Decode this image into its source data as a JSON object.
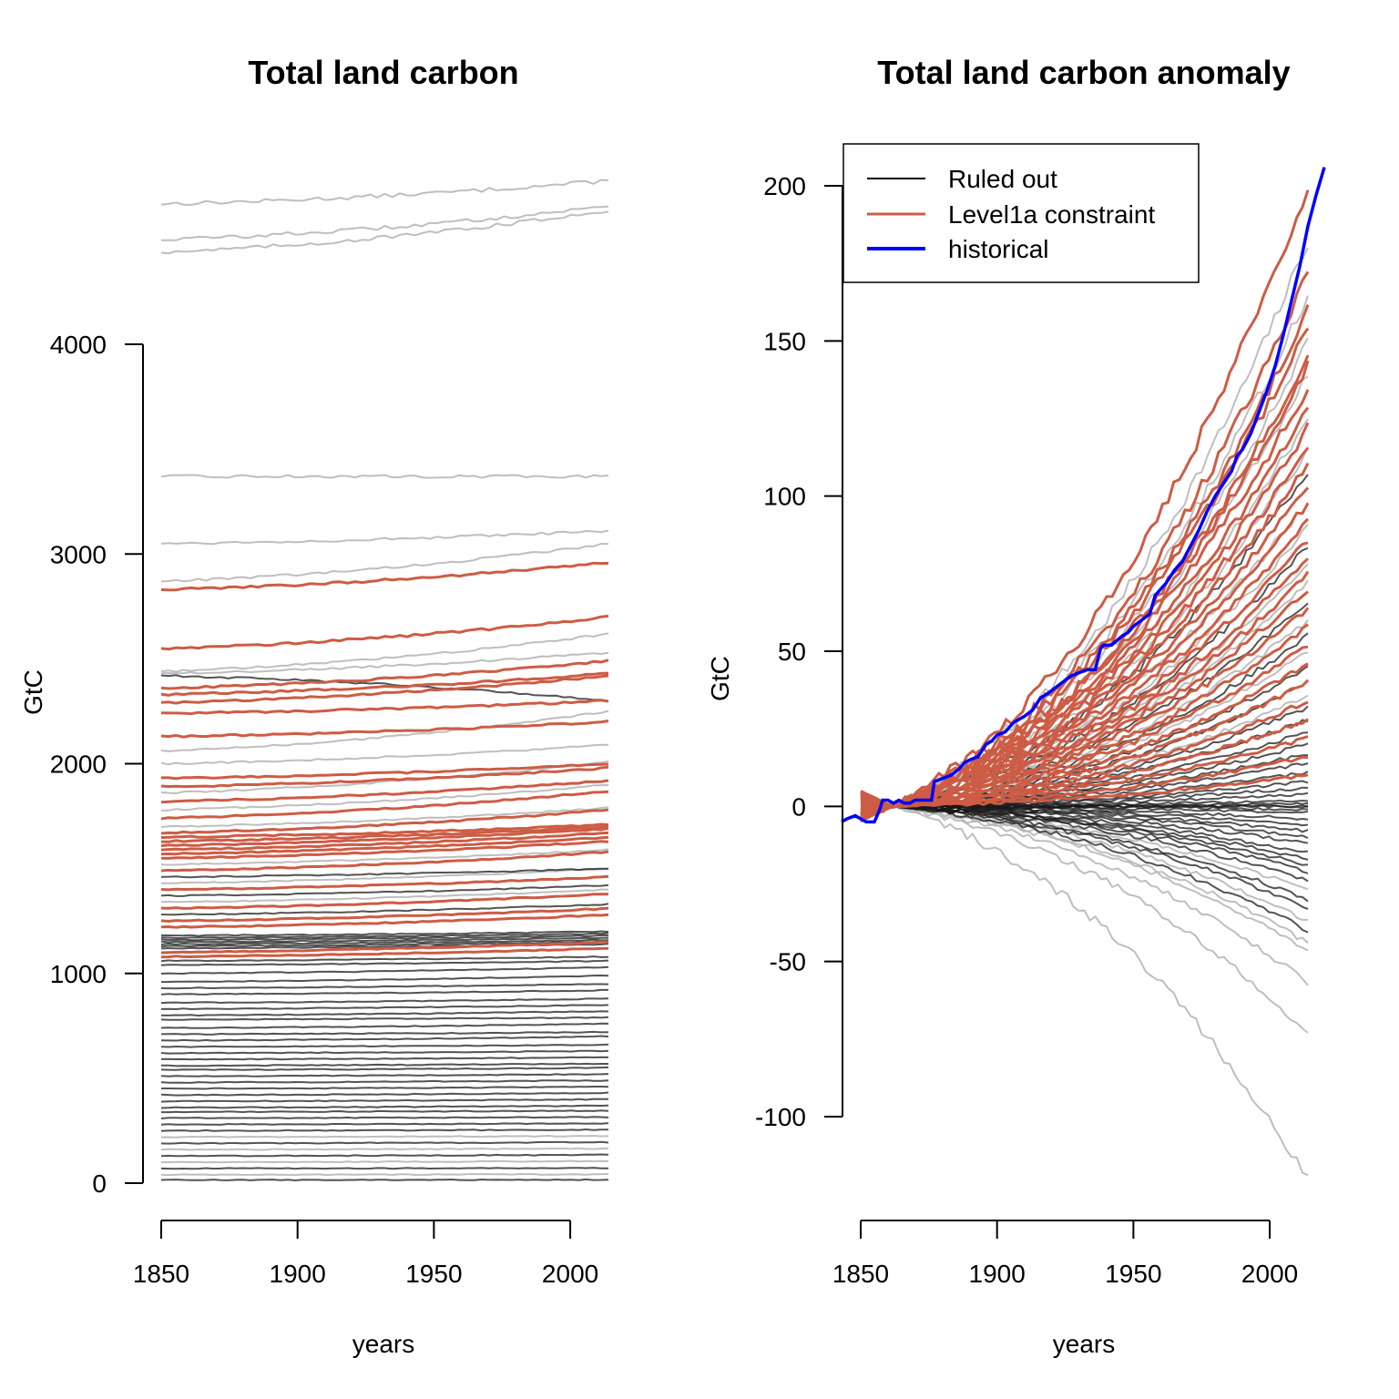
{
  "chart_data": [
    {
      "type": "line",
      "title": "Total land carbon",
      "xlabel": "years",
      "ylabel": "GtC",
      "xlim": [
        1850,
        2014
      ],
      "ylim": [
        0,
        4000
      ],
      "x_ticks": [
        1850,
        1900,
        1950,
        2000
      ],
      "y_ticks": [
        0,
        1000,
        2000,
        3000,
        4000
      ],
      "colors": {
        "ruled_out_light": "#b3b3b3",
        "ruled_out_dark": "#1a1a1a",
        "constraint": "#cd5c45"
      },
      "series": [
        {
          "group": "ruled_out_light",
          "start": 4670,
          "end": 4780
        },
        {
          "group": "ruled_out_light",
          "start": 4500,
          "end": 4660
        },
        {
          "group": "ruled_out_light",
          "start": 4440,
          "end": 4640
        },
        {
          "group": "ruled_out_light",
          "start": 3370,
          "end": 3370
        },
        {
          "group": "ruled_out_light",
          "start": 3050,
          "end": 3110
        },
        {
          "group": "ruled_out_light",
          "start": 2870,
          "end": 3050
        },
        {
          "group": "constraint",
          "start": 2830,
          "end": 2960
        },
        {
          "group": "constraint",
          "start": 2550,
          "end": 2700
        },
        {
          "group": "ruled_out_light",
          "start": 2440,
          "end": 2620
        },
        {
          "group": "ruled_out_light",
          "start": 2430,
          "end": 2530
        },
        {
          "group": "ruled_out_dark",
          "start": 2420,
          "end": 2300
        },
        {
          "group": "constraint",
          "start": 2360,
          "end": 2490
        },
        {
          "group": "constraint",
          "start": 2330,
          "end": 2430
        },
        {
          "group": "constraint",
          "start": 2290,
          "end": 2420
        },
        {
          "group": "constraint",
          "start": 2240,
          "end": 2300
        },
        {
          "group": "constraint",
          "start": 2130,
          "end": 2200
        },
        {
          "group": "ruled_out_light",
          "start": 2060,
          "end": 2250
        },
        {
          "group": "ruled_out_light",
          "start": 2000,
          "end": 2090
        },
        {
          "group": "constraint",
          "start": 1930,
          "end": 2000
        },
        {
          "group": "constraint",
          "start": 1890,
          "end": 1980
        },
        {
          "group": "ruled_out_light",
          "start": 1860,
          "end": 2010
        },
        {
          "group": "constraint",
          "start": 1820,
          "end": 1920
        },
        {
          "group": "ruled_out_light",
          "start": 1780,
          "end": 1900
        },
        {
          "group": "constraint",
          "start": 1740,
          "end": 1870
        },
        {
          "group": "ruled_out_light",
          "start": 1700,
          "end": 1790
        },
        {
          "group": "constraint",
          "start": 1670,
          "end": 1780
        },
        {
          "group": "constraint",
          "start": 1650,
          "end": 1710
        },
        {
          "group": "constraint",
          "start": 1630,
          "end": 1700
        },
        {
          "group": "constraint",
          "start": 1610,
          "end": 1690
        },
        {
          "group": "constraint",
          "start": 1590,
          "end": 1670
        },
        {
          "group": "constraint",
          "start": 1570,
          "end": 1650
        },
        {
          "group": "constraint",
          "start": 1550,
          "end": 1630
        },
        {
          "group": "ruled_out_light",
          "start": 1520,
          "end": 1590
        },
        {
          "group": "constraint",
          "start": 1490,
          "end": 1580
        },
        {
          "group": "ruled_out_dark",
          "start": 1460,
          "end": 1500
        },
        {
          "group": "ruled_out_light",
          "start": 1430,
          "end": 1500
        },
        {
          "group": "constraint",
          "start": 1400,
          "end": 1460
        },
        {
          "group": "ruled_out_dark",
          "start": 1370,
          "end": 1420
        },
        {
          "group": "ruled_out_light",
          "start": 1340,
          "end": 1400
        },
        {
          "group": "constraint",
          "start": 1310,
          "end": 1380
        },
        {
          "group": "ruled_out_dark",
          "start": 1280,
          "end": 1330
        },
        {
          "group": "constraint",
          "start": 1250,
          "end": 1310
        },
        {
          "group": "constraint",
          "start": 1220,
          "end": 1280
        },
        {
          "group": "ruled_out_dark",
          "start": 1180,
          "end": 1200
        },
        {
          "group": "ruled_out_dark",
          "start": 1170,
          "end": 1190
        },
        {
          "group": "ruled_out_dark",
          "start": 1160,
          "end": 1180
        },
        {
          "group": "ruled_out_dark",
          "start": 1150,
          "end": 1170
        },
        {
          "group": "ruled_out_dark",
          "start": 1140,
          "end": 1160
        },
        {
          "group": "ruled_out_dark",
          "start": 1130,
          "end": 1150
        },
        {
          "group": "ruled_out_dark",
          "start": 1120,
          "end": 1140
        },
        {
          "group": "constraint",
          "start": 1100,
          "end": 1150
        },
        {
          "group": "constraint",
          "start": 1080,
          "end": 1120
        },
        {
          "group": "ruled_out_dark",
          "start": 1060,
          "end": 1080
        },
        {
          "group": "ruled_out_dark",
          "start": 1040,
          "end": 1060
        },
        {
          "group": "ruled_out_dark",
          "start": 1000,
          "end": 1030
        },
        {
          "group": "ruled_out_dark",
          "start": 960,
          "end": 990
        },
        {
          "group": "ruled_out_dark",
          "start": 930,
          "end": 950
        },
        {
          "group": "ruled_out_dark",
          "start": 900,
          "end": 920
        },
        {
          "group": "ruled_out_dark",
          "start": 860,
          "end": 880
        },
        {
          "group": "ruled_out_dark",
          "start": 830,
          "end": 850
        },
        {
          "group": "ruled_out_dark",
          "start": 800,
          "end": 820
        },
        {
          "group": "ruled_out_dark",
          "start": 780,
          "end": 790
        },
        {
          "group": "ruled_out_dark",
          "start": 740,
          "end": 760
        },
        {
          "group": "ruled_out_dark",
          "start": 710,
          "end": 720
        },
        {
          "group": "ruled_out_dark",
          "start": 680,
          "end": 700
        },
        {
          "group": "ruled_out_dark",
          "start": 650,
          "end": 660
        },
        {
          "group": "ruled_out_dark",
          "start": 620,
          "end": 630
        },
        {
          "group": "ruled_out_dark",
          "start": 590,
          "end": 600
        },
        {
          "group": "ruled_out_dark",
          "start": 560,
          "end": 570
        },
        {
          "group": "ruled_out_dark",
          "start": 540,
          "end": 550
        },
        {
          "group": "ruled_out_dark",
          "start": 510,
          "end": 520
        },
        {
          "group": "ruled_out_dark",
          "start": 480,
          "end": 490
        },
        {
          "group": "ruled_out_dark",
          "start": 450,
          "end": 460
        },
        {
          "group": "ruled_out_dark",
          "start": 420,
          "end": 430
        },
        {
          "group": "ruled_out_dark",
          "start": 390,
          "end": 400
        },
        {
          "group": "ruled_out_dark",
          "start": 360,
          "end": 370
        },
        {
          "group": "ruled_out_dark",
          "start": 340,
          "end": 345
        },
        {
          "group": "ruled_out_dark",
          "start": 310,
          "end": 315
        },
        {
          "group": "ruled_out_dark",
          "start": 280,
          "end": 285
        },
        {
          "group": "ruled_out_dark",
          "start": 250,
          "end": 255
        },
        {
          "group": "ruled_out_light",
          "start": 220,
          "end": 225
        },
        {
          "group": "ruled_out_dark",
          "start": 190,
          "end": 195
        },
        {
          "group": "ruled_out_light",
          "start": 160,
          "end": 165
        },
        {
          "group": "ruled_out_dark",
          "start": 130,
          "end": 135
        },
        {
          "group": "ruled_out_light",
          "start": 100,
          "end": 105
        },
        {
          "group": "ruled_out_dark",
          "start": 70,
          "end": 72
        },
        {
          "group": "ruled_out_light",
          "start": 40,
          "end": 42
        },
        {
          "group": "ruled_out_dark",
          "start": 15,
          "end": 16
        }
      ]
    },
    {
      "type": "line",
      "title": "Total land carbon anomaly",
      "xlabel": "years",
      "ylabel": "GtC",
      "xlim": [
        1850,
        2014
      ],
      "ylim": [
        -100,
        200
      ],
      "x_ticks": [
        1850,
        1900,
        1950,
        2000
      ],
      "y_ticks": [
        -100,
        -50,
        0,
        50,
        100,
        150,
        200
      ],
      "colors": {
        "ruled_out_light": "#b3b3b3",
        "ruled_out_dark": "#1a1a1a",
        "constraint": "#cd5c45",
        "historical": "#0000ff"
      },
      "legend": {
        "position": "top-left",
        "entries": [
          {
            "label": "Ruled out",
            "color": "#000000"
          },
          {
            "label": "Level1a constraint",
            "color": "#cd5c45"
          },
          {
            "label": "historical",
            "color": "#0000ff"
          }
        ]
      },
      "series": [
        {
          "group": "ruled_out_light",
          "end": 182
        },
        {
          "group": "ruled_out_light",
          "end": 165
        },
        {
          "group": "ruled_out_light",
          "end": 150
        },
        {
          "group": "ruled_out_light",
          "end": 140
        },
        {
          "group": "ruled_out_light",
          "end": 125
        },
        {
          "group": "ruled_out_light",
          "end": 115
        },
        {
          "group": "ruled_out_dark",
          "end": 108
        },
        {
          "group": "ruled_out_light",
          "end": 98
        },
        {
          "group": "ruled_out_light",
          "end": 90
        },
        {
          "group": "ruled_out_dark",
          "end": 84
        },
        {
          "group": "ruled_out_light",
          "end": 78
        },
        {
          "group": "ruled_out_light",
          "end": 72
        },
        {
          "group": "ruled_out_dark",
          "end": 66
        },
        {
          "group": "ruled_out_light",
          "end": 60
        },
        {
          "group": "ruled_out_dark",
          "end": 55
        },
        {
          "group": "ruled_out_light",
          "end": 50
        },
        {
          "group": "ruled_out_dark",
          "end": 45
        },
        {
          "group": "ruled_out_dark",
          "end": 40
        },
        {
          "group": "ruled_out_light",
          "end": 36
        },
        {
          "group": "ruled_out_dark",
          "end": 32
        },
        {
          "group": "ruled_out_dark",
          "end": 28
        },
        {
          "group": "ruled_out_dark",
          "end": 24
        },
        {
          "group": "ruled_out_dark",
          "end": 20
        },
        {
          "group": "ruled_out_dark",
          "end": 17
        },
        {
          "group": "ruled_out_dark",
          "end": 14
        },
        {
          "group": "ruled_out_dark",
          "end": 11
        },
        {
          "group": "ruled_out_dark",
          "end": 8
        },
        {
          "group": "ruled_out_dark",
          "end": 6
        },
        {
          "group": "ruled_out_dark",
          "end": 4
        },
        {
          "group": "ruled_out_dark",
          "end": 2
        },
        {
          "group": "ruled_out_dark",
          "end": 1
        },
        {
          "group": "ruled_out_dark",
          "end": 0
        },
        {
          "group": "ruled_out_dark",
          "end": 0
        },
        {
          "group": "ruled_out_dark",
          "end": -1
        },
        {
          "group": "ruled_out_dark",
          "end": -2
        },
        {
          "group": "ruled_out_dark",
          "end": -4
        },
        {
          "group": "ruled_out_dark",
          "end": -6
        },
        {
          "group": "ruled_out_dark",
          "end": -8
        },
        {
          "group": "ruled_out_dark",
          "end": -10
        },
        {
          "group": "ruled_out_dark",
          "end": -12
        },
        {
          "group": "ruled_out_dark",
          "end": -15
        },
        {
          "group": "ruled_out_dark",
          "end": -17
        },
        {
          "group": "ruled_out_dark",
          "end": -19
        },
        {
          "group": "ruled_out_dark",
          "end": -21
        },
        {
          "group": "ruled_out_dark",
          "end": -24
        },
        {
          "group": "ruled_out_light",
          "end": -27
        },
        {
          "group": "ruled_out_dark",
          "end": -30
        },
        {
          "group": "ruled_out_dark",
          "end": -33
        },
        {
          "group": "ruled_out_light",
          "end": -37
        },
        {
          "group": "ruled_out_dark",
          "end": -40
        },
        {
          "group": "ruled_out_light",
          "end": -44
        },
        {
          "group": "ruled_out_light",
          "end": -47
        },
        {
          "group": "ruled_out_light",
          "end": -57
        },
        {
          "group": "ruled_out_light",
          "end": -73
        },
        {
          "group": "ruled_out_light",
          "end": -120
        },
        {
          "group": "constraint",
          "end": 200
        },
        {
          "group": "constraint",
          "end": 172
        },
        {
          "group": "constraint",
          "end": 160
        },
        {
          "group": "constraint",
          "end": 155
        },
        {
          "group": "constraint",
          "end": 145
        },
        {
          "group": "constraint",
          "end": 142
        },
        {
          "group": "constraint",
          "end": 135
        },
        {
          "group": "constraint",
          "end": 128
        },
        {
          "group": "constraint",
          "end": 122
        },
        {
          "group": "constraint",
          "end": 116
        },
        {
          "group": "constraint",
          "end": 110
        },
        {
          "group": "constraint",
          "end": 104
        },
        {
          "group": "constraint",
          "end": 98
        },
        {
          "group": "constraint",
          "end": 92
        },
        {
          "group": "constraint",
          "end": 86
        },
        {
          "group": "constraint",
          "end": 80
        },
        {
          "group": "constraint",
          "end": 75
        },
        {
          "group": "constraint",
          "end": 70
        },
        {
          "group": "constraint",
          "end": 64
        },
        {
          "group": "constraint",
          "end": 58
        },
        {
          "group": "constraint",
          "end": 52
        },
        {
          "group": "constraint",
          "end": 46
        },
        {
          "group": "constraint",
          "end": 40
        },
        {
          "group": "constraint",
          "end": 34
        },
        {
          "group": "constraint",
          "end": 28
        },
        {
          "group": "constraint",
          "end": 22
        },
        {
          "group": "constraint",
          "end": 16
        },
        {
          "group": "constraint",
          "end": 10
        }
      ],
      "historical": {
        "x": [
          1843,
          1845,
          1848,
          1850,
          1852,
          1855,
          1857,
          1858,
          1860,
          1862,
          1864,
          1866,
          1868,
          1870,
          1872,
          1874,
          1876,
          1877,
          1880,
          1883,
          1886,
          1888,
          1890,
          1893,
          1896,
          1898,
          1900,
          1903,
          1906,
          1910,
          1913,
          1916,
          1918,
          1921,
          1924,
          1927,
          1930,
          1933,
          1936,
          1938,
          1939,
          1942,
          1946,
          1948,
          1950,
          1953,
          1956,
          1958,
          1959,
          1962,
          1965,
          1968,
          1971,
          1974,
          1977,
          1980,
          1983,
          1986,
          1988,
          1990,
          1993,
          1996,
          1999,
          2002,
          2005,
          2008,
          2011,
          2014,
          2017,
          2020
        ],
        "y": [
          -5,
          -4,
          -3,
          -4,
          -5,
          -5,
          -1,
          2,
          2,
          1,
          2,
          1,
          1,
          2,
          2,
          2,
          2,
          8,
          9,
          10,
          12,
          14,
          15,
          16,
          20,
          21,
          23,
          24,
          27,
          29,
          31,
          35,
          36,
          38,
          40,
          42,
          43,
          44,
          44,
          51,
          52,
          52,
          55,
          56,
          58,
          60,
          62,
          68,
          69,
          72,
          76,
          79,
          84,
          89,
          95,
          100,
          104,
          108,
          113,
          115,
          120,
          127,
          134,
          142,
          152,
          163,
          174,
          187,
          197,
          206
        ]
      }
    }
  ]
}
